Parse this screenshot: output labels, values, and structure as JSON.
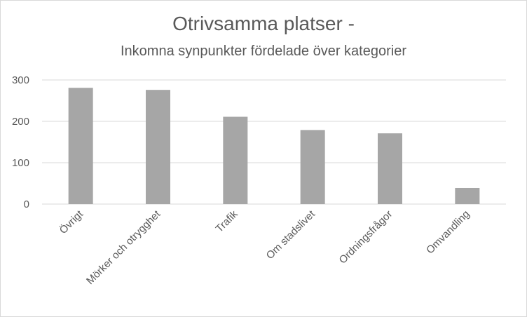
{
  "chart_data": {
    "type": "bar",
    "title": "Otrivsamma platser -",
    "subtitle": "Inkomna synpunkter fördelade över kategorier",
    "categories": [
      "Övrigt",
      "Mörker och otrygghet",
      "Trafik",
      "Om stadslivet",
      "Ordningsfrågor",
      "Omvandling"
    ],
    "values": [
      281,
      276,
      211,
      179,
      171,
      39
    ],
    "ylim": [
      0,
      300
    ],
    "yticks": [
      0,
      100,
      200,
      300
    ],
    "grid": true,
    "legend": "none",
    "bar_color": "#a6a6a6",
    "grid_color": "#d9d9d9"
  }
}
